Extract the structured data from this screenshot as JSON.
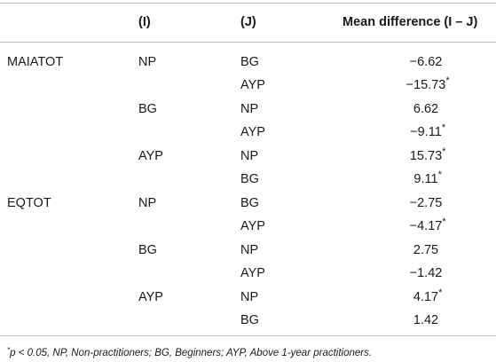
{
  "table": {
    "headers": {
      "measure": "",
      "i": "(I)",
      "j": "(J)",
      "diff": "Mean difference  (I – J)"
    },
    "rows": [
      {
        "measure": "MAIATOT",
        "i": "NP",
        "j": "BG",
        "diff": "−6.62",
        "star": ""
      },
      {
        "measure": "",
        "i": "",
        "j": "AYP",
        "diff": "−15.73",
        "star": "*"
      },
      {
        "measure": "",
        "i": "BG",
        "j": "NP",
        "diff": "6.62",
        "star": ""
      },
      {
        "measure": "",
        "i": "",
        "j": "AYP",
        "diff": "−9.11",
        "star": "*"
      },
      {
        "measure": "",
        "i": "AYP",
        "j": "NP",
        "diff": "15.73",
        "star": "*"
      },
      {
        "measure": "",
        "i": "",
        "j": "BG",
        "diff": "9.11",
        "star": "*"
      },
      {
        "measure": "EQTOT",
        "i": "NP",
        "j": "BG",
        "diff": "−2.75",
        "star": ""
      },
      {
        "measure": "",
        "i": "",
        "j": "AYP",
        "diff": "−4.17",
        "star": "*"
      },
      {
        "measure": "",
        "i": "BG",
        "j": "NP",
        "diff": "2.75",
        "star": ""
      },
      {
        "measure": "",
        "i": "",
        "j": "AYP",
        "diff": "−1.42",
        "star": ""
      },
      {
        "measure": "",
        "i": "AYP",
        "j": "NP",
        "diff": "4.17",
        "star": "*"
      },
      {
        "measure": "",
        "i": "",
        "j": "BG",
        "diff": "1.42",
        "star": ""
      }
    ]
  },
  "footnote": {
    "marker": "*",
    "text": "p < 0.05, NP, Non-practitioners; BG, Beginners; AYP, Above 1-year practitioners."
  }
}
